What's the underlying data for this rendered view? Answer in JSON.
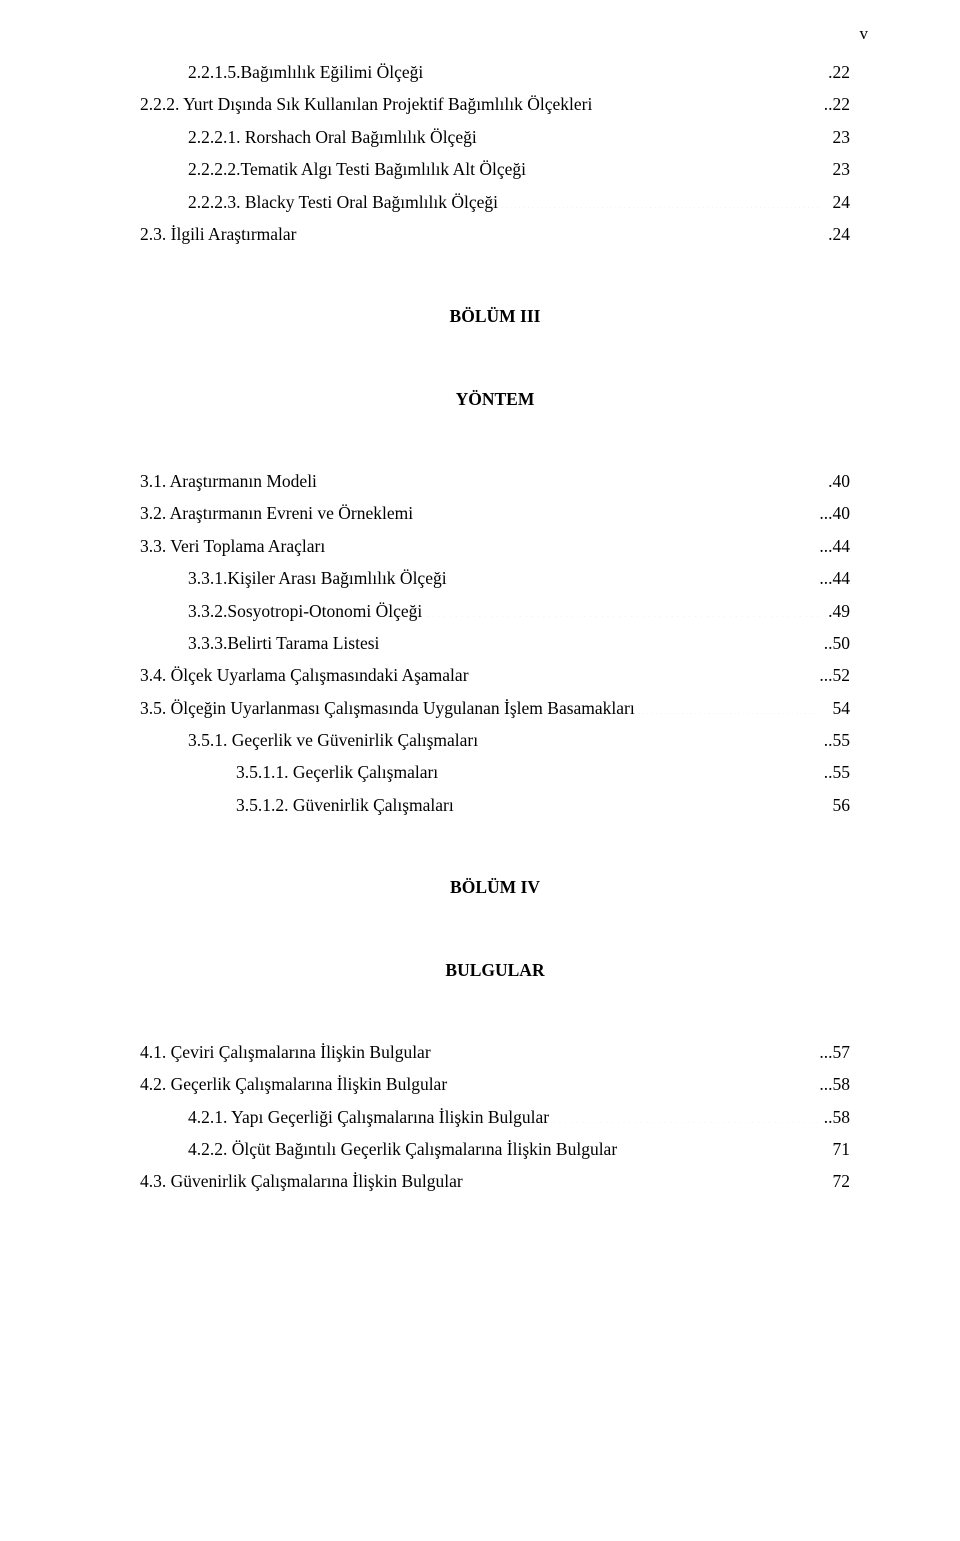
{
  "page_roman": "v",
  "sections": {
    "bolum3_heading": "BÖLÜM III",
    "bolum3_sub": "YÖNTEM",
    "bolum4_heading": "BÖLÜM IV",
    "bolum4_sub": "BULGULAR"
  },
  "entries_top": [
    {
      "label": "2.2.1.5.Bağımlılık Eğilimi Ölçeği",
      "leader": "ellipsis",
      "page": ".22",
      "indent": 1
    },
    {
      "label": "2.2.2. Yurt Dışında Sık Kullanılan Projektif Bağımlılık Ölçekleri",
      "leader": "ellipsis",
      "page": "..22",
      "indent": 0
    },
    {
      "label": "2.2.2.1. Rorshach Oral Bağımlılık Ölçeği",
      "leader": "ellipsis",
      "page": "23",
      "indent": 1
    },
    {
      "label": "2.2.2.2.Tematik Algı Testi Bağımlılık Alt Ölçeği",
      "leader": "ellipsis",
      "page": "23",
      "indent": 1
    },
    {
      "label": "2.2.2.3. Blacky Testi Oral Bağımlılık Ölçeği",
      "leader": "dotted",
      "page": "24",
      "indent": 1
    },
    {
      "label": "2.3. İlgili Araştırmalar",
      "leader": "ellipsis",
      "page": ".24",
      "indent": 0
    }
  ],
  "entries_b3": [
    {
      "label": "3.1. Araştırmanın Modeli",
      "leader": "ellipsis",
      "page": ".40",
      "indent": 0
    },
    {
      "label": "3.2. Araştırmanın Evreni ve Örneklemi",
      "leader": "ellipsis",
      "page": "...40",
      "indent": 0
    },
    {
      "label": "3.3. Veri Toplama Araçları",
      "leader": "ellipsis",
      "page": "...44",
      "indent": 0
    },
    {
      "label": "3.3.1.Kişiler Arası Bağımlılık Ölçeği",
      "leader": "ellipsis",
      "page": "...44",
      "indent": 1
    },
    {
      "label": "3.3.2.Sosyotropi-Otonomi Ölçeği",
      "leader": "ellipsis",
      "page": ".49",
      "indent": 1
    },
    {
      "label": "3.3.3.Belirti Tarama Listesi",
      "leader": "ellipsis",
      "page": "..50",
      "indent": 1
    },
    {
      "label": "3.4. Ölçek Uyarlama Çalışmasındaki Aşamalar",
      "leader": "ellipsis",
      "page": "...52",
      "indent": 0
    },
    {
      "label": "3.5. Ölçeğin Uyarlanması Çalışmasında Uygulanan İşlem Basamakları",
      "leader": "dotted",
      "page": "54",
      "indent": 0
    },
    {
      "label": "3.5.1. Geçerlik ve Güvenirlik Çalışmaları",
      "leader": "dotted",
      "page": "..55",
      "indent": 1
    },
    {
      "label": "3.5.1.1. Geçerlik Çalışmaları",
      "leader": "ellipsis",
      "page": "..55",
      "indent": 2
    },
    {
      "label": "3.5.1.2. Güvenirlik Çalışmaları",
      "leader": "dotted",
      "page": "56",
      "indent": 2
    }
  ],
  "entries_b4": [
    {
      "label": "4.1. Çeviri Çalışmalarına İlişkin Bulgular",
      "leader": "ellipsis",
      "page": "...57",
      "indent": 0
    },
    {
      "label": "4.2. Geçerlik Çalışmalarına İlişkin Bulgular",
      "leader": "ellipsis",
      "page": "...58",
      "indent": 0
    },
    {
      "label": "4.2.1. Yapı Geçerliği Çalışmalarına İlişkin Bulgular",
      "leader": "ellipsis",
      "page": "..58",
      "indent": 1
    },
    {
      "label": "4.2.2. Ölçüt Bağıntılı Geçerlik Çalışmalarına İlişkin Bulgular",
      "leader": "ellipsis",
      "page": "71",
      "indent": 1
    },
    {
      "label": "4.3. Güvenirlik Çalışmalarına İlişkin Bulgular",
      "leader": "ellipsis",
      "page": "72",
      "indent": 0
    }
  ]
}
